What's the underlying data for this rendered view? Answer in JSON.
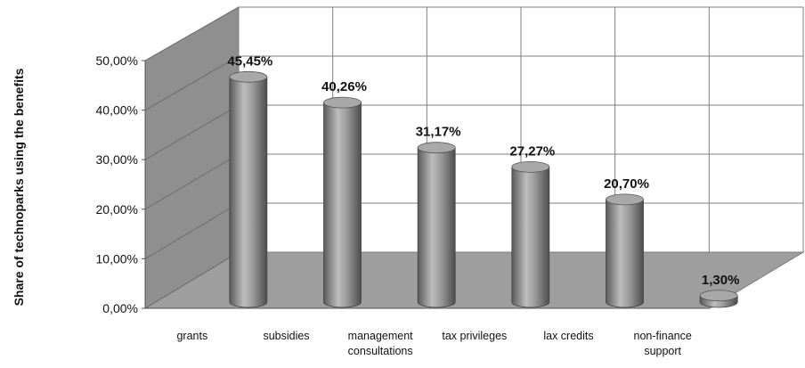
{
  "chart_data": {
    "type": "bar",
    "style": "3d-cylinder",
    "categories": [
      "grants",
      "subsidies",
      "management\nconsultations",
      "tax privileges",
      "lax credits",
      "non-finance\nsupport"
    ],
    "values": [
      45.45,
      40.26,
      31.17,
      27.27,
      20.7,
      1.3
    ],
    "data_labels": [
      "45,45%",
      "40,26%",
      "31,17%",
      "27,27%",
      "20,70%",
      "1,30%"
    ],
    "ylabel": "Share of technoparks using the benefits",
    "yticks": [
      "0,00%",
      "10,00%",
      "20,00%",
      "30,00%",
      "40,00%",
      "50,00%"
    ],
    "ylim": [
      0,
      50
    ],
    "grid": true,
    "colors": {
      "bar": "#8c8c8c",
      "back_wall": "#ffffff",
      "side_wall": "#8f8f8f",
      "floor": "#9e9e9e",
      "gridline": "#7f7f7f"
    }
  }
}
